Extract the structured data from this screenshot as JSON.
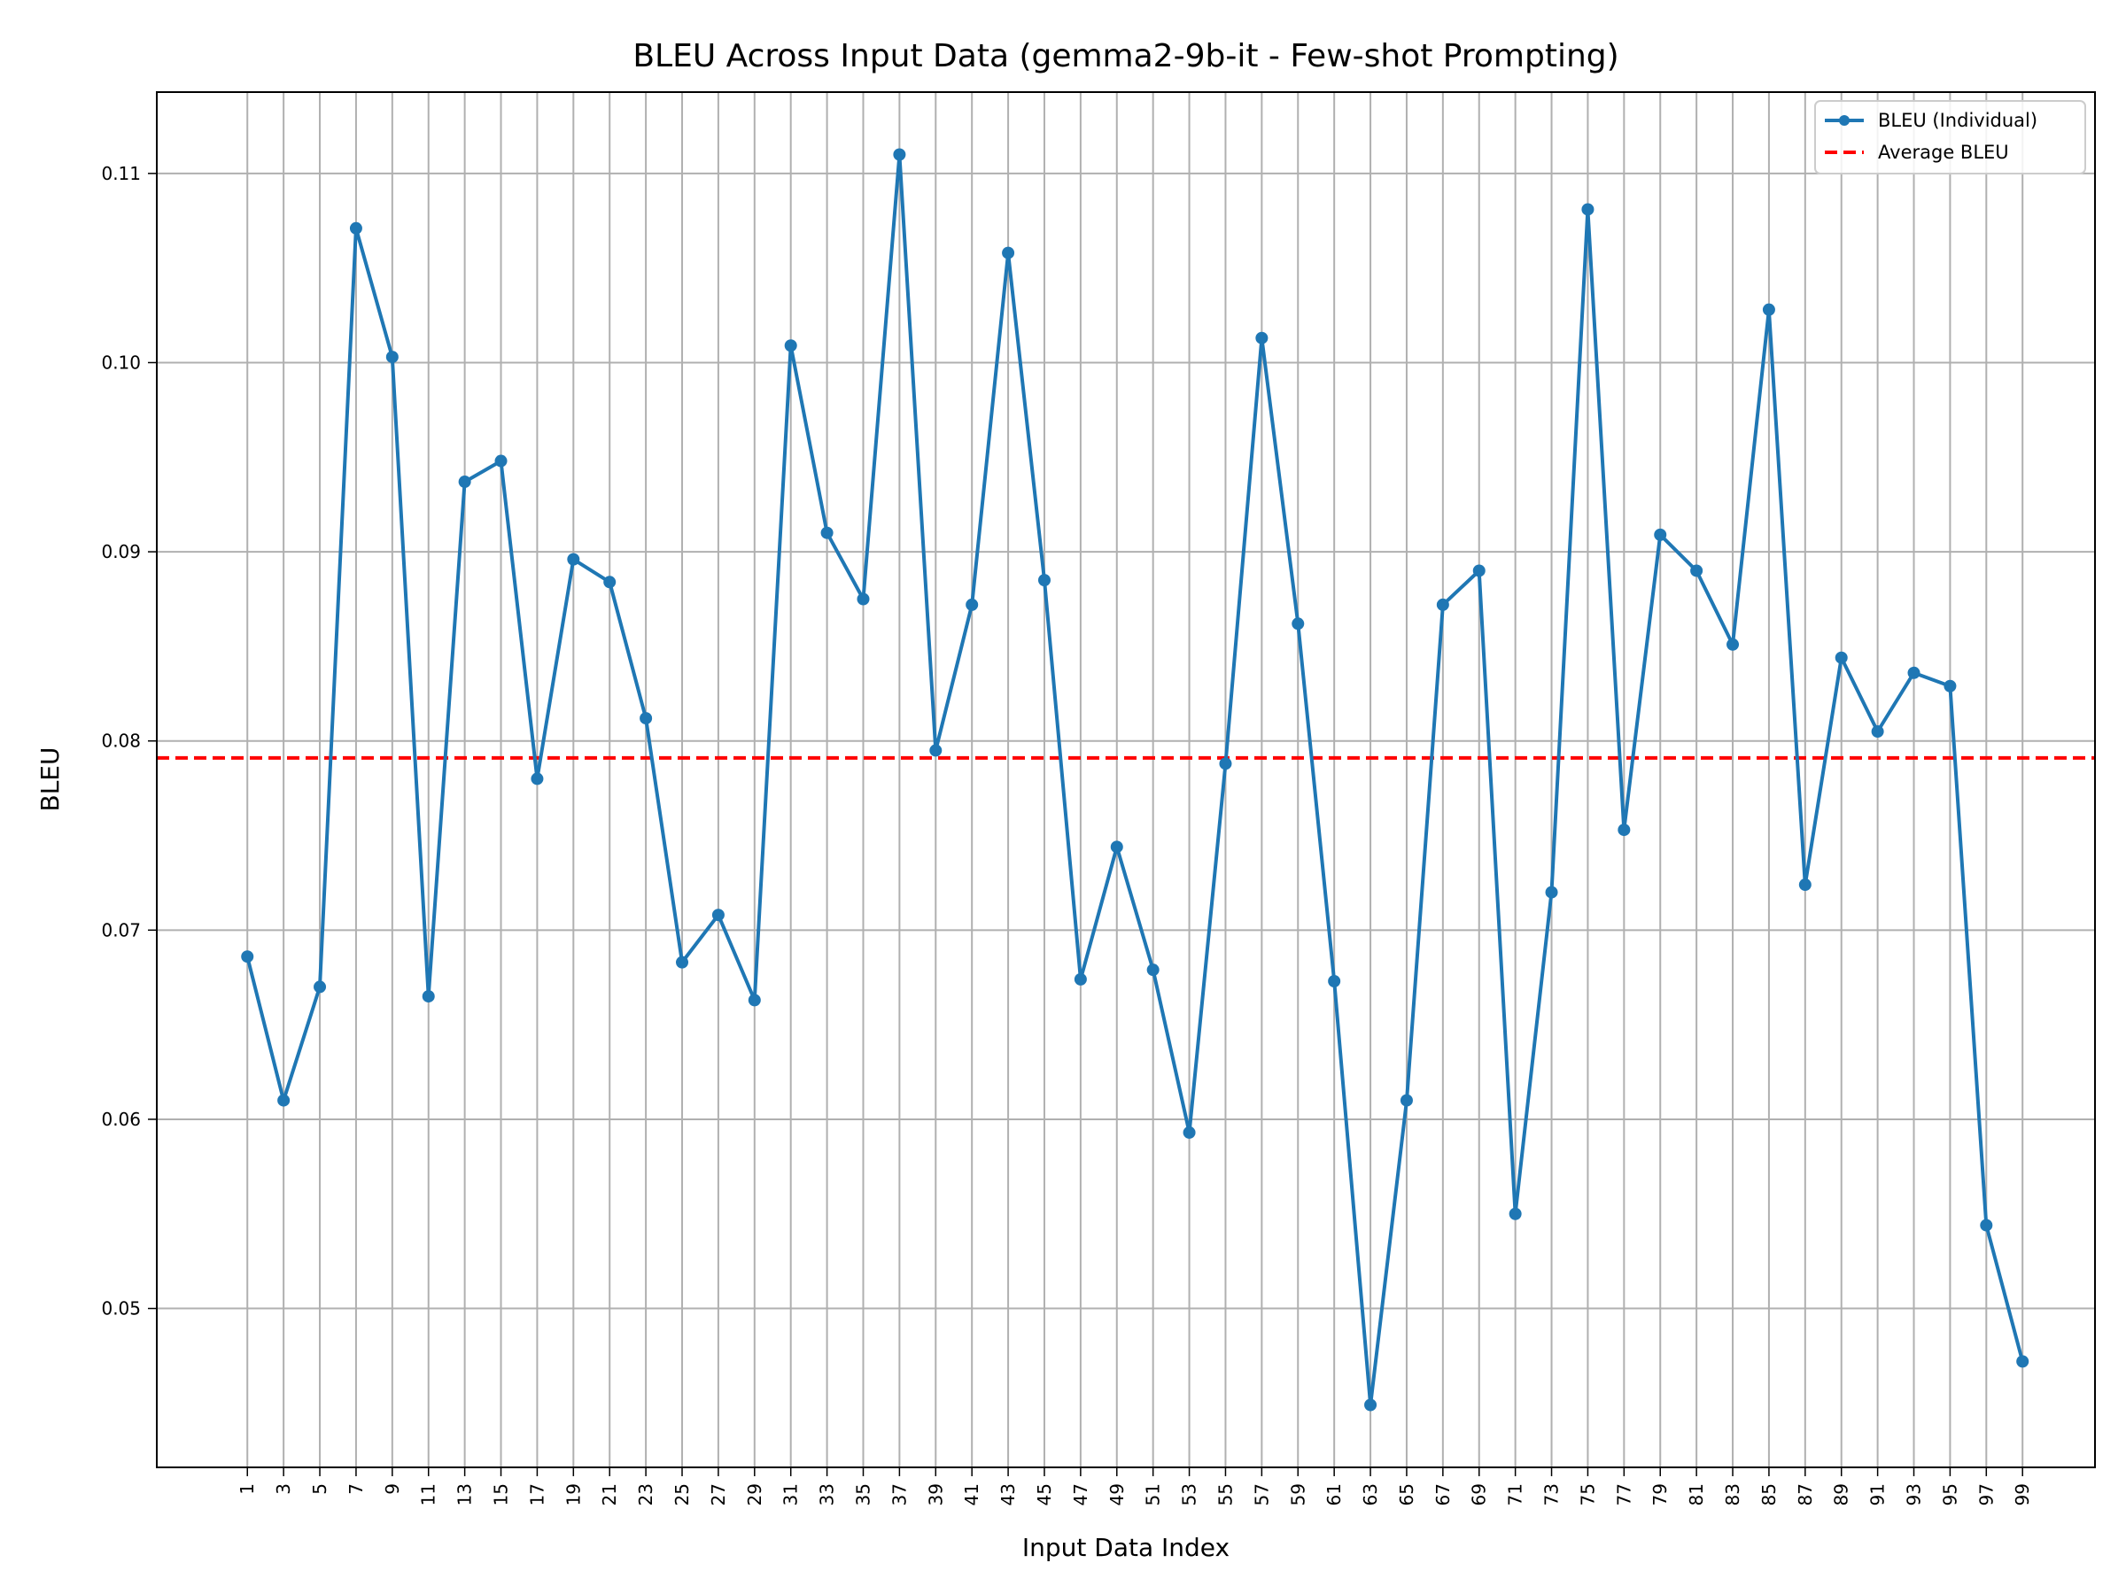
{
  "chart_data": {
    "type": "line",
    "title": "BLEU Across Input Data (gemma2-9b-it - Few-shot Prompting)",
    "xlabel": "Input Data Index",
    "ylabel": "BLEU",
    "x": [
      1,
      3,
      5,
      7,
      9,
      11,
      13,
      15,
      17,
      19,
      21,
      23,
      25,
      27,
      29,
      31,
      33,
      35,
      37,
      39,
      41,
      43,
      45,
      47,
      49,
      51,
      53,
      55,
      57,
      59,
      61,
      63,
      65,
      67,
      69,
      71,
      73,
      75,
      77,
      79,
      81,
      83,
      85,
      87,
      89,
      91,
      93,
      95,
      97,
      99
    ],
    "x_tick_labels": [
      "1",
      "3",
      "5",
      "7",
      "9",
      "11",
      "13",
      "15",
      "17",
      "19",
      "21",
      "23",
      "25",
      "27",
      "29",
      "31",
      "33",
      "35",
      "37",
      "39",
      "41",
      "43",
      "45",
      "47",
      "49",
      "51",
      "53",
      "55",
      "57",
      "59",
      "61",
      "63",
      "65",
      "67",
      "69",
      "71",
      "73",
      "75",
      "77",
      "79",
      "81",
      "83",
      "85",
      "87",
      "89",
      "91",
      "93",
      "95",
      "97",
      "99"
    ],
    "y_ticks": [
      0.05,
      0.06,
      0.07,
      0.08,
      0.09,
      0.1,
      0.11
    ],
    "y_tick_labels": [
      "0.05",
      "0.06",
      "0.07",
      "0.08",
      "0.09",
      "0.10",
      "0.11"
    ],
    "ylim": [
      0.0416,
      0.1143
    ],
    "xlim": [
      -4,
      103
    ],
    "grid": true,
    "legend_position": "top-right",
    "series": [
      {
        "name": "BLEU (Individual)",
        "color": "#1f77b4",
        "style": "solid-with-markers",
        "values": [
          0.0686,
          0.061,
          0.067,
          0.1071,
          0.1003,
          0.0665,
          0.0937,
          0.0948,
          0.078,
          0.0896,
          0.0884,
          0.0812,
          0.0683,
          0.0708,
          0.0663,
          0.1009,
          0.091,
          0.0875,
          0.111,
          0.0795,
          0.0872,
          0.1058,
          0.0885,
          0.0674,
          0.0744,
          0.0679,
          0.0593,
          0.0788,
          0.1013,
          0.0862,
          0.0673,
          0.0449,
          0.061,
          0.0872,
          0.089,
          0.055,
          0.072,
          0.1081,
          0.0753,
          0.0909,
          0.089,
          0.0851,
          0.1028,
          0.0724,
          0.0844,
          0.0805,
          0.0836,
          0.0829,
          0.0544,
          0.0472
        ]
      },
      {
        "name": "Average BLEU",
        "color": "#ff0000",
        "style": "dashed",
        "value": 0.0791
      }
    ]
  }
}
